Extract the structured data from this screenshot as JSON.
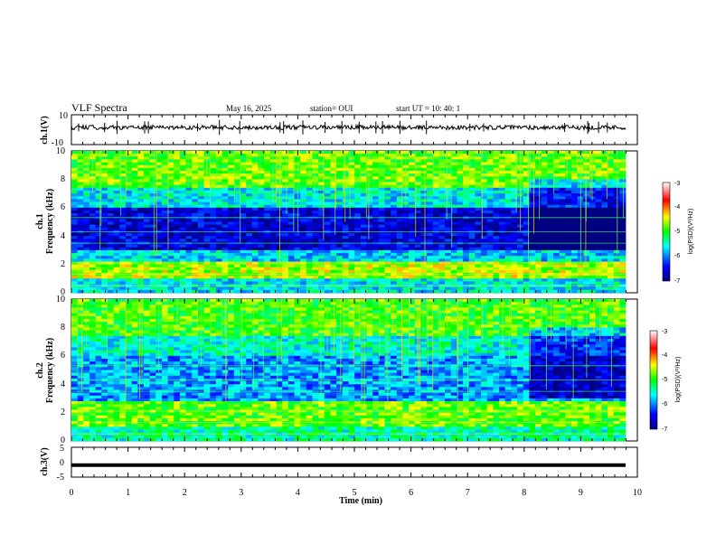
{
  "header": {
    "title": "VLF Spectra",
    "date": "May 16, 2025",
    "station": "station= OUI",
    "start": "start  UT  =   10: 40: 1"
  },
  "chart_data": [
    {
      "type": "line",
      "id": "ch1-waveform",
      "ylabel": "ch.1(V)",
      "ylim": [
        -10,
        10
      ],
      "yticks": [
        "10",
        "-10"
      ],
      "xlim": [
        0,
        10
      ],
      "description_values": {
        "baseline": 0,
        "typical_amplitude": 1.5,
        "spike_amplitude": 5
      }
    },
    {
      "type": "heatmap",
      "id": "ch1-spectrogram",
      "ylabel": "ch.1\nFrequency (kHz)",
      "ylabel_line1": "ch.1",
      "ylabel_line2": "Frequency  (kHz)",
      "ylim": [
        0,
        10
      ],
      "yticks": [
        "0",
        "2",
        "4",
        "6",
        "8",
        "10"
      ],
      "xlim": [
        0,
        9.8
      ],
      "colorbar": {
        "label": "log(PSD)(V²/Hz)",
        "min": -7,
        "max": -3,
        "ticks": [
          "-3",
          "-4",
          "-5",
          "-6",
          "-7"
        ]
      },
      "bands": [
        {
          "f_low": 0,
          "f_high": 1,
          "level": -5.6
        },
        {
          "f_low": 1,
          "f_high": 2.2,
          "level": -4.6
        },
        {
          "f_low": 2.2,
          "f_high": 3,
          "level": -5.7
        },
        {
          "f_low": 3,
          "f_high": 6,
          "level": -6.6
        },
        {
          "f_low": 6,
          "f_high": 7.5,
          "level": -5.6
        },
        {
          "f_low": 7.5,
          "f_high": 10,
          "level": -4.8
        }
      ]
    },
    {
      "type": "heatmap",
      "id": "ch2-spectrogram",
      "ylabel_line1": "ch.2",
      "ylabel_line2": "Frequency  (kHz)",
      "ylim": [
        0,
        10
      ],
      "yticks": [
        "0",
        "2",
        "4",
        "6",
        "8",
        "10"
      ],
      "xlim": [
        0,
        9.8
      ],
      "colorbar": {
        "label": "log(PSD)(V²/Hz)",
        "min": -7,
        "max": -3,
        "ticks": [
          "-3",
          "-4",
          "-5",
          "-6",
          "-7"
        ]
      },
      "bands": [
        {
          "f_low": 0,
          "f_high": 1,
          "level": -5.4
        },
        {
          "f_low": 1,
          "f_high": 2.8,
          "level": -4.8
        },
        {
          "f_low": 2.8,
          "f_high": 6,
          "level": -5.9
        },
        {
          "f_low": 6,
          "f_high": 7.5,
          "level": -5.5
        },
        {
          "f_low": 7.5,
          "f_high": 10,
          "level": -4.9
        }
      ]
    },
    {
      "type": "line",
      "id": "ch3-waveform",
      "ylabel": "ch.3(V)",
      "ylim": [
        -5,
        5
      ],
      "yticks": [
        "5",
        "0",
        "-5"
      ],
      "xlim": [
        0,
        10
      ],
      "description_values": {
        "level": -1
      }
    }
  ],
  "xaxis": {
    "label": "Time  (min)",
    "ticks": [
      "0",
      "1",
      "2",
      "3",
      "4",
      "5",
      "6",
      "7",
      "8",
      "9",
      "10"
    ]
  },
  "colors": {
    "colormap": [
      "#000080",
      "#0000ff",
      "#00ffff",
      "#00ff00",
      "#ffff00",
      "#ff0000",
      "#ffffff"
    ]
  }
}
